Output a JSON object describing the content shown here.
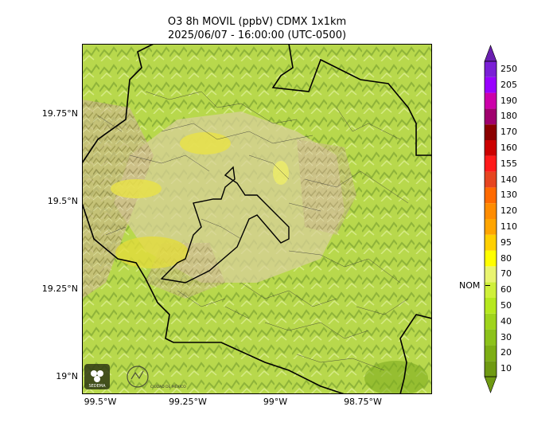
{
  "title": {
    "line1": "O3 8h MOVIL (ppbV) CDMX 1x1km",
    "line2": "2025/06/07 - 16:00:00 (UTC-0500)"
  },
  "axes": {
    "lat_ticks": [
      "19.75°N",
      "19.5°N",
      "19.25°N",
      "19°N"
    ],
    "lon_ticks": [
      "99.5°W",
      "99.25°W",
      "99°W",
      "98.75°W"
    ]
  },
  "colorbar": {
    "levels": [
      "10",
      "20",
      "30",
      "40",
      "50",
      "60",
      "70",
      "80",
      "95",
      "110",
      "120",
      "130",
      "140",
      "155",
      "160",
      "170",
      "180",
      "190",
      "205",
      "250"
    ],
    "colors": [
      "#6f9a12",
      "#7dae14",
      "#8cc21a",
      "#9fd41c",
      "#b6e81e",
      "#cff03a",
      "#e9f470",
      "#ffff00",
      "#ffd000",
      "#ffa500",
      "#ff8c00",
      "#ff6a00",
      "#e64520",
      "#ff1a1a",
      "#cc0000",
      "#8b0000",
      "#a0006e",
      "#cc00aa",
      "#9900ff",
      "#7a1fd6"
    ],
    "bottom_color": "#6f9a12",
    "top_color": "#6a1fb0",
    "nom_label": "NOM",
    "nom_value": 70
  },
  "logos": {
    "sedema": "SEDEMA",
    "cdmx": "CIUDAD DE MÉXICO"
  }
}
